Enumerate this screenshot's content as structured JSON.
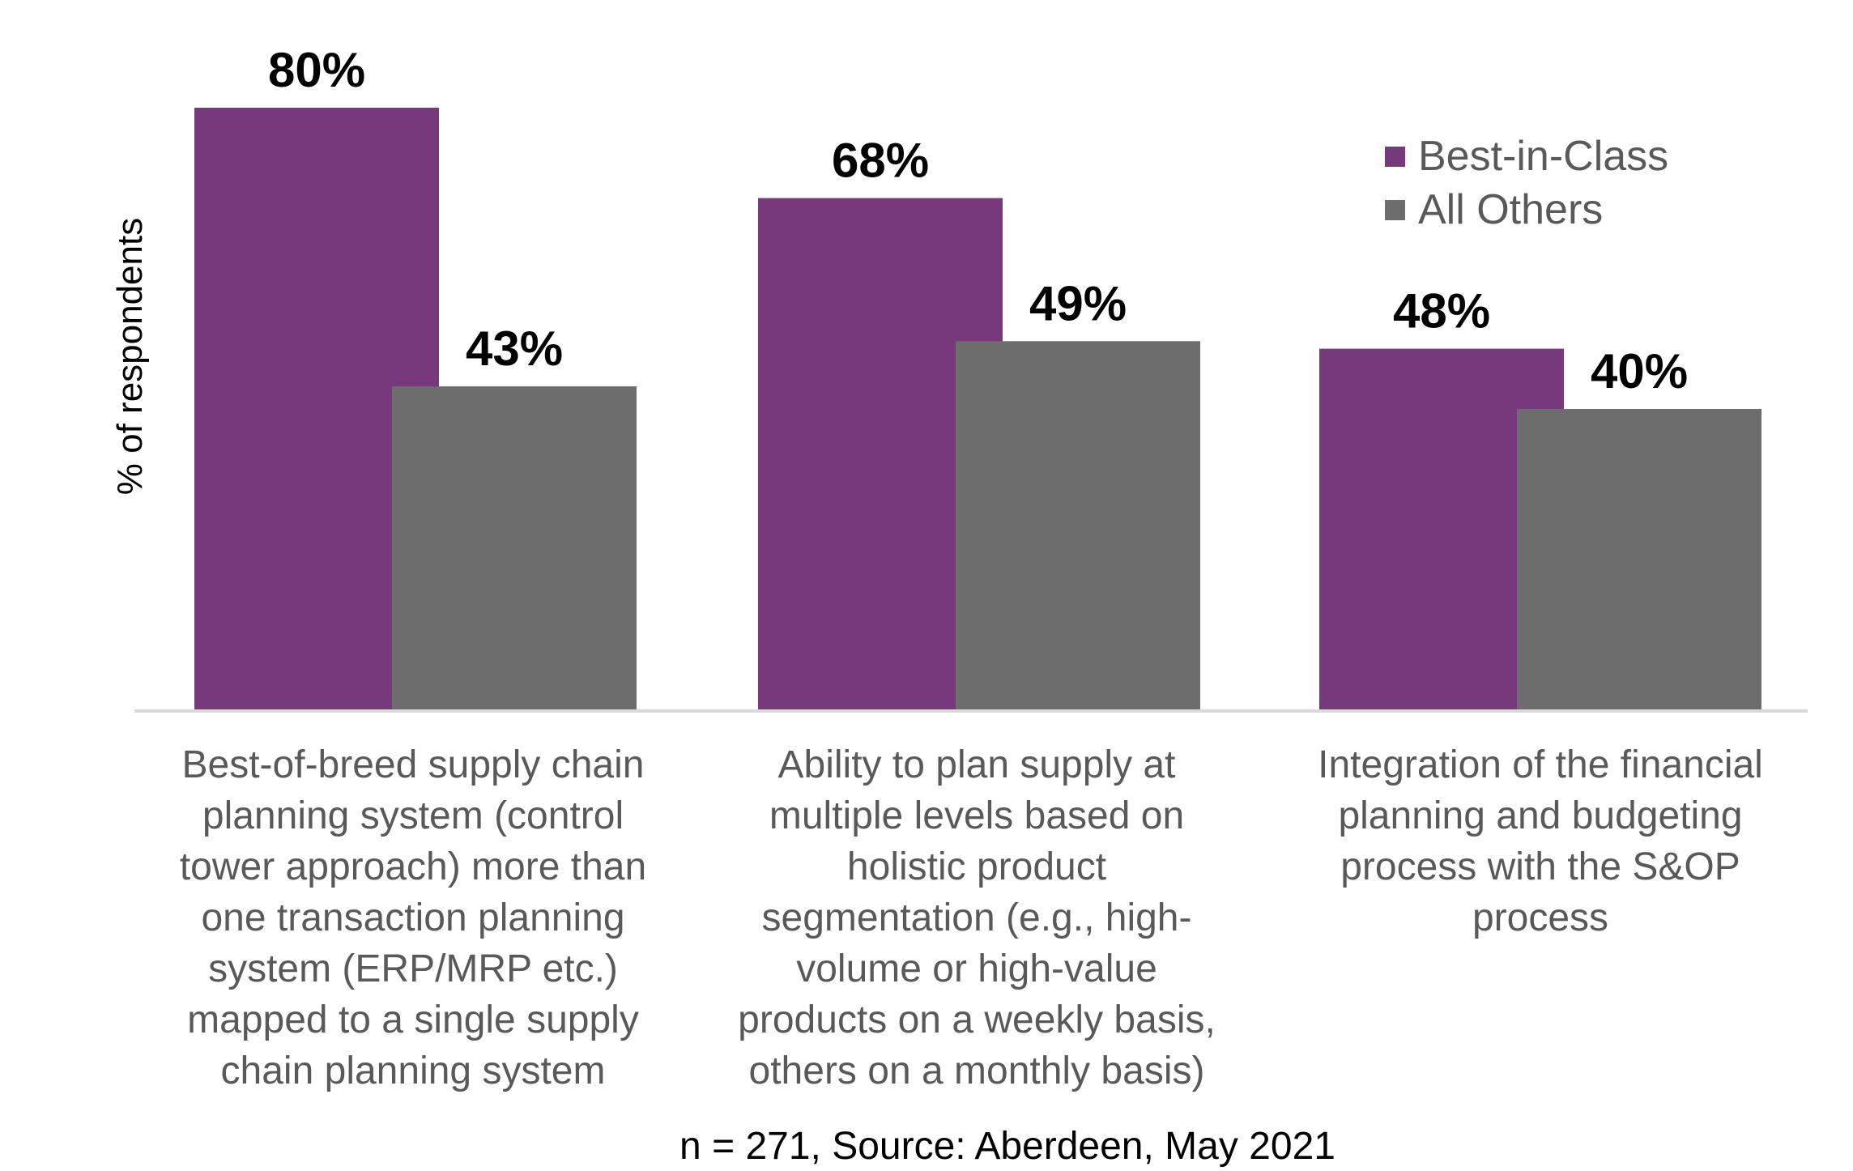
{
  "chart_data": {
    "type": "bar",
    "categories": [
      [
        "Best-of-breed supply chain",
        "planning system (control",
        "tower approach) more than",
        "one transaction planning",
        "system (ERP/MRP etc.)",
        "mapped to a single supply",
        "chain planning system"
      ],
      [
        "Ability to plan supply at",
        "multiple levels based on",
        "holistic product",
        "segmentation (e.g., high-",
        "volume or high-value",
        "products on a weekly basis,",
        "others on a monthly basis)"
      ],
      [
        "Integration of the financial",
        "planning and budgeting",
        "process with the S&OP",
        "process"
      ]
    ],
    "series": [
      {
        "name": "Best-in-Class",
        "values": [
          80,
          68,
          48
        ],
        "labels": [
          "80%",
          "68%",
          "48%"
        ],
        "color": "#77387c"
      },
      {
        "name": "All Others",
        "values": [
          43,
          49,
          40
        ],
        "labels": [
          "43%",
          "49%",
          "40%"
        ],
        "color": "#6d6d6d"
      }
    ],
    "ylabel": "% of respondents",
    "ylim": [
      0,
      80
    ],
    "grid": false,
    "legend_position": "top-right",
    "footnote": "n = 271, Source: Aberdeen, May 2021"
  }
}
